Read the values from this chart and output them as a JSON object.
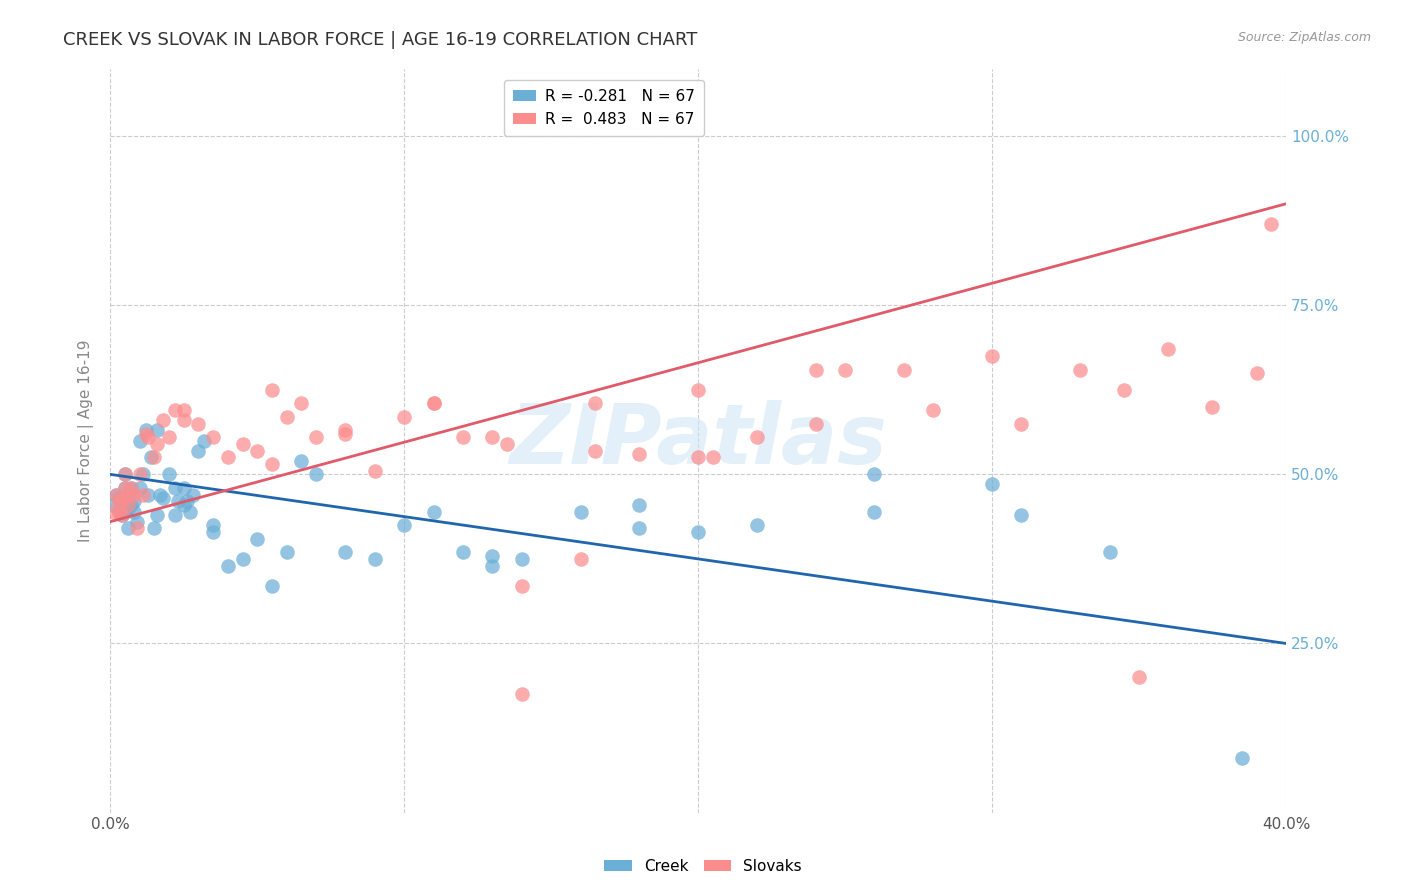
{
  "title": "CREEK VS SLOVAK IN LABOR FORCE | AGE 16-19 CORRELATION CHART",
  "source": "Source: ZipAtlas.com",
  "ylabel": "In Labor Force | Age 16-19",
  "xmin": 0.0,
  "xmax": 0.4,
  "ymin": 0.0,
  "ymax": 1.1,
  "yticks": [
    0.25,
    0.5,
    0.75,
    1.0
  ],
  "ytick_labels_right": [
    "25.0%",
    "50.0%",
    "75.0%",
    "100.0%"
  ],
  "xticks": [
    0.0,
    0.1,
    0.2,
    0.3,
    0.4
  ],
  "xtick_labels": [
    "0.0%",
    "",
    "",
    "",
    "40.0%"
  ],
  "creek_color": "#6baed6",
  "slovak_color": "#fc8d8d",
  "creek_line_color": "#2166ac",
  "slovak_line_color": "#e05a6a",
  "creek_R": -0.281,
  "creek_N": 67,
  "slovak_R": 0.483,
  "slovak_N": 67,
  "legend_creek_label": "Creek",
  "legend_slovak_label": "Slovaks",
  "watermark": "ZIPatlas",
  "background_color": "#ffffff",
  "grid_color": "#cccccc",
  "creek_line_y0": 0.5,
  "creek_line_y1": 0.25,
  "slovak_line_y0": 0.43,
  "slovak_line_y1": 0.9,
  "creek_x": [
    0.001,
    0.002,
    0.003,
    0.003,
    0.004,
    0.004,
    0.005,
    0.005,
    0.005,
    0.006,
    0.006,
    0.006,
    0.007,
    0.007,
    0.008,
    0.008,
    0.009,
    0.01,
    0.01,
    0.011,
    0.012,
    0.013,
    0.014,
    0.015,
    0.016,
    0.016,
    0.017,
    0.018,
    0.02,
    0.022,
    0.023,
    0.025,
    0.025,
    0.026,
    0.027,
    0.028,
    0.03,
    0.032,
    0.035,
    0.04,
    0.045,
    0.05,
    0.055,
    0.06,
    0.065,
    0.07,
    0.08,
    0.09,
    0.1,
    0.11,
    0.12,
    0.13,
    0.14,
    0.16,
    0.18,
    0.2,
    0.22,
    0.26,
    0.3,
    0.34,
    0.022,
    0.035,
    0.13,
    0.18,
    0.26,
    0.31,
    0.385
  ],
  "creek_y": [
    0.455,
    0.47,
    0.465,
    0.445,
    0.44,
    0.46,
    0.5,
    0.48,
    0.445,
    0.42,
    0.45,
    0.47,
    0.48,
    0.455,
    0.445,
    0.46,
    0.43,
    0.55,
    0.48,
    0.5,
    0.565,
    0.47,
    0.525,
    0.42,
    0.565,
    0.44,
    0.47,
    0.465,
    0.5,
    0.44,
    0.46,
    0.455,
    0.48,
    0.46,
    0.445,
    0.47,
    0.535,
    0.55,
    0.425,
    0.365,
    0.375,
    0.405,
    0.335,
    0.385,
    0.52,
    0.5,
    0.385,
    0.375,
    0.425,
    0.445,
    0.385,
    0.365,
    0.375,
    0.445,
    0.455,
    0.415,
    0.425,
    0.445,
    0.485,
    0.385,
    0.48,
    0.415,
    0.38,
    0.42,
    0.5,
    0.44,
    0.08
  ],
  "slovak_x": [
    0.001,
    0.002,
    0.003,
    0.003,
    0.004,
    0.004,
    0.005,
    0.005,
    0.006,
    0.006,
    0.007,
    0.008,
    0.009,
    0.01,
    0.011,
    0.012,
    0.013,
    0.015,
    0.016,
    0.018,
    0.02,
    0.022,
    0.025,
    0.03,
    0.035,
    0.04,
    0.045,
    0.05,
    0.055,
    0.06,
    0.065,
    0.07,
    0.08,
    0.09,
    0.1,
    0.11,
    0.12,
    0.13,
    0.14,
    0.16,
    0.18,
    0.2,
    0.22,
    0.25,
    0.27,
    0.3,
    0.33,
    0.36,
    0.39,
    0.025,
    0.055,
    0.135,
    0.165,
    0.205,
    0.24,
    0.28,
    0.31,
    0.345,
    0.375,
    0.14,
    0.08,
    0.11,
    0.165,
    0.2,
    0.24,
    0.35,
    0.395
  ],
  "slovak_y": [
    0.445,
    0.47,
    0.46,
    0.445,
    0.44,
    0.46,
    0.48,
    0.5,
    0.455,
    0.47,
    0.48,
    0.47,
    0.42,
    0.5,
    0.47,
    0.56,
    0.555,
    0.525,
    0.545,
    0.58,
    0.555,
    0.595,
    0.58,
    0.575,
    0.555,
    0.525,
    0.545,
    0.535,
    0.625,
    0.585,
    0.605,
    0.555,
    0.565,
    0.505,
    0.585,
    0.605,
    0.555,
    0.555,
    0.335,
    0.375,
    0.53,
    0.625,
    0.555,
    0.655,
    0.655,
    0.675,
    0.655,
    0.685,
    0.65,
    0.595,
    0.515,
    0.545,
    0.605,
    0.525,
    0.575,
    0.595,
    0.575,
    0.625,
    0.6,
    0.175,
    0.56,
    0.605,
    0.535,
    0.525,
    0.655,
    0.2,
    0.87
  ]
}
